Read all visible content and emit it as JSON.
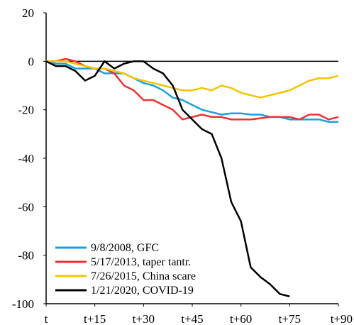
{
  "chart_data": {
    "type": "line",
    "x": [
      0,
      3,
      6,
      9,
      12,
      15,
      18,
      21,
      24,
      27,
      30,
      33,
      36,
      39,
      42,
      45,
      48,
      51,
      54,
      57,
      60,
      63,
      66,
      69,
      72,
      75,
      78,
      81,
      84,
      87,
      90
    ],
    "series": [
      {
        "name": "9/8/2008, GFC",
        "color": "#1aa0e0",
        "values": [
          0,
          -1,
          -1,
          -3,
          -3,
          -3,
          -5,
          -5,
          -5,
          -7,
          -9,
          -10,
          -12,
          -15,
          -16,
          -18,
          -20,
          -21,
          -22,
          -21.5,
          -21.5,
          -22,
          -22,
          -23,
          -23,
          -24,
          -24,
          -24,
          -24,
          -25,
          -25
        ]
      },
      {
        "name": "5/17/2013, taper tantr.",
        "color": "#f03030",
        "values": [
          0,
          0,
          1,
          0,
          -2,
          -3,
          -3,
          -5,
          -10,
          -12,
          -16,
          -16,
          -18,
          -20,
          -24,
          -23,
          -22,
          -23,
          -23,
          -24,
          -24,
          -24,
          -23.5,
          -23,
          -23,
          -23,
          -24,
          -22,
          -22,
          -24,
          -23
        ]
      },
      {
        "name": "7/26/2015, China scare",
        "color": "#f5c400",
        "values": [
          0,
          0,
          0,
          -1,
          -2,
          -3,
          -3,
          -4,
          -5,
          -7,
          -8,
          -9,
          -10,
          -11,
          -12,
          -12,
          -11,
          -12,
          -10,
          -11,
          -13,
          -14,
          -15,
          -14,
          -13,
          -12,
          -10,
          -8,
          -7,
          -7,
          -6
        ]
      },
      {
        "name": "1/21/2020, COVID-19",
        "color": "#000000",
        "values": [
          0,
          -2,
          -2,
          -4,
          -8,
          -6,
          0,
          -3,
          -1,
          0,
          0,
          -3,
          -5,
          -10,
          -20,
          -24,
          -28,
          -30,
          -40,
          -58,
          -66,
          -85,
          -89,
          -92,
          -96,
          -97,
          null,
          null,
          null,
          null,
          null
        ]
      }
    ],
    "xlim": [
      0,
      90
    ],
    "xticks": [
      {
        "value": 0,
        "label": "t"
      },
      {
        "value": 15,
        "label": "t+15"
      },
      {
        "value": 30,
        "label": "t+30"
      },
      {
        "value": 45,
        "label": "t+45"
      },
      {
        "value": 60,
        "label": "t+60"
      },
      {
        "value": 75,
        "label": "t+75"
      },
      {
        "value": 90,
        "label": "t+90"
      }
    ],
    "ylim": [
      -100,
      20
    ],
    "yticks": [
      20,
      0,
      -20,
      -40,
      -60,
      -80,
      -100
    ],
    "legend": "lower left"
  }
}
